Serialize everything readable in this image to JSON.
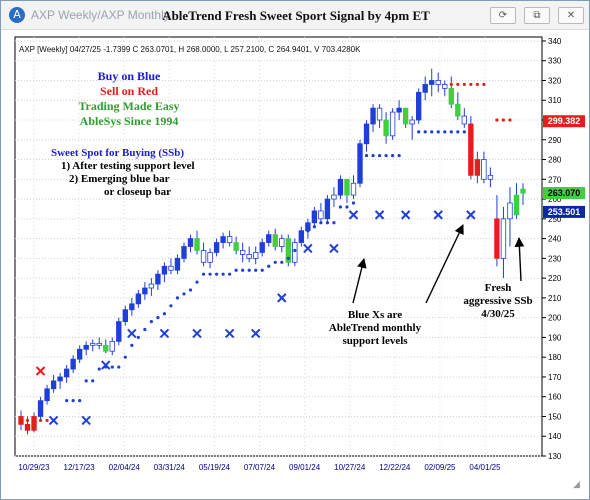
{
  "window": {
    "app_label": "AXP Weekly/AXP Monthly",
    "chart_title": "AbleTrend Fresh Sweet Sport Signal by 4pm ET",
    "buttons": {
      "refresh": "⟳",
      "restore": "⧉",
      "close": "✕"
    }
  },
  "header_text": "AXP [Weekly] 04/27/25 -1.7399 C 263.0701, H 268.0000, L 257.2100, C 264.9401, V 703.4280K",
  "legend_lines": [
    {
      "text": "Buy on Blue",
      "color": "#1a1ad6"
    },
    {
      "text": "Sell on Red",
      "color": "#e81c1c"
    },
    {
      "text": "Trading Made Easy",
      "color": "#2e9e2e"
    },
    {
      "text": "AbleSys Since 1994",
      "color": "#2e9e2e"
    }
  ],
  "sweet_spot": {
    "title": "Sweet Spot for Buying (SSb)",
    "lines": [
      "1) After testing support level",
      "2) Emerging blue bar",
      "or closeup bar"
    ]
  },
  "annotations": {
    "blue_x": [
      "Blue Xs are",
      "AbleTrend monthly",
      "support levels"
    ],
    "fresh": [
      "Fresh",
      "aggressive SSb",
      "4/30/25"
    ]
  },
  "price_labels": [
    {
      "value": 299.382,
      "text": "299.382",
      "bg": "#e81c1c",
      "fg": "#ffffff"
    },
    {
      "value": 263.07,
      "text": "263.070",
      "bg": "#3fcf3f",
      "fg": "#000000"
    },
    {
      "value": 253.501,
      "text": "253.501",
      "bg": "#0a2a9c",
      "fg": "#ffffff"
    }
  ],
  "chart_data": {
    "type": "candlestick",
    "y_ticks": [
      130,
      140,
      150,
      160,
      170,
      180,
      190,
      200,
      210,
      220,
      230,
      240,
      250,
      260,
      270,
      280,
      290,
      300,
      310,
      320,
      330,
      340
    ],
    "x_labels": [
      "10/29/23",
      "12/17/23",
      "02/04/24",
      "03/31/24",
      "05/19/24",
      "07/07/24",
      "09/01/24",
      "10/27/24",
      "12/22/24",
      "02/09/25",
      "04/01/25"
    ],
    "ylim": [
      130,
      342
    ],
    "x_count": 78,
    "bars": [
      {
        "o": 150,
        "h": 153,
        "l": 143,
        "c": 146,
        "color": "red"
      },
      {
        "o": 146,
        "h": 150,
        "l": 141,
        "c": 143,
        "color": "red"
      },
      {
        "o": 143,
        "h": 152,
        "l": 142,
        "c": 150,
        "color": "red"
      },
      {
        "o": 150,
        "h": 160,
        "l": 148,
        "c": 158,
        "color": "blue"
      },
      {
        "o": 158,
        "h": 166,
        "l": 156,
        "c": 164,
        "color": "blue"
      },
      {
        "o": 164,
        "h": 171,
        "l": 162,
        "c": 168,
        "color": "blue"
      },
      {
        "o": 168,
        "h": 172,
        "l": 164,
        "c": 170,
        "color": "blue"
      },
      {
        "o": 170,
        "h": 176,
        "l": 167,
        "c": 174,
        "color": "blue"
      },
      {
        "o": 174,
        "h": 181,
        "l": 172,
        "c": 179,
        "color": "blue"
      },
      {
        "o": 179,
        "h": 186,
        "l": 177,
        "c": 184,
        "color": "blue"
      },
      {
        "o": 184,
        "h": 188,
        "l": 181,
        "c": 186,
        "color": "blue"
      },
      {
        "o": 186,
        "h": 189,
        "l": 183,
        "c": 187,
        "color": "white"
      },
      {
        "o": 187,
        "h": 190,
        "l": 184,
        "c": 186,
        "color": "white"
      },
      {
        "o": 186,
        "h": 189,
        "l": 182,
        "c": 183,
        "color": "green"
      },
      {
        "o": 183,
        "h": 190,
        "l": 181,
        "c": 188,
        "color": "white"
      },
      {
        "o": 188,
        "h": 200,
        "l": 186,
        "c": 198,
        "color": "blue"
      },
      {
        "o": 198,
        "h": 206,
        "l": 196,
        "c": 204,
        "color": "blue"
      },
      {
        "o": 204,
        "h": 210,
        "l": 201,
        "c": 207,
        "color": "blue"
      },
      {
        "o": 207,
        "h": 214,
        "l": 205,
        "c": 212,
        "color": "blue"
      },
      {
        "o": 212,
        "h": 218,
        "l": 209,
        "c": 215,
        "color": "blue"
      },
      {
        "o": 215,
        "h": 220,
        "l": 211,
        "c": 217,
        "color": "white"
      },
      {
        "o": 217,
        "h": 224,
        "l": 214,
        "c": 222,
        "color": "blue"
      },
      {
        "o": 222,
        "h": 228,
        "l": 218,
        "c": 226,
        "color": "blue"
      },
      {
        "o": 226,
        "h": 230,
        "l": 222,
        "c": 224,
        "color": "white"
      },
      {
        "o": 224,
        "h": 232,
        "l": 222,
        "c": 230,
        "color": "blue"
      },
      {
        "o": 230,
        "h": 238,
        "l": 228,
        "c": 236,
        "color": "blue"
      },
      {
        "o": 236,
        "h": 242,
        "l": 233,
        "c": 240,
        "color": "blue"
      },
      {
        "o": 240,
        "h": 244,
        "l": 232,
        "c": 234,
        "color": "green"
      },
      {
        "o": 234,
        "h": 238,
        "l": 226,
        "c": 228,
        "color": "white"
      },
      {
        "o": 228,
        "h": 235,
        "l": 225,
        "c": 233,
        "color": "white"
      },
      {
        "o": 233,
        "h": 240,
        "l": 231,
        "c": 238,
        "color": "blue"
      },
      {
        "o": 238,
        "h": 243,
        "l": 235,
        "c": 241,
        "color": "blue"
      },
      {
        "o": 241,
        "h": 244,
        "l": 236,
        "c": 238,
        "color": "white"
      },
      {
        "o": 238,
        "h": 241,
        "l": 232,
        "c": 234,
        "color": "green"
      },
      {
        "o": 234,
        "h": 238,
        "l": 228,
        "c": 232,
        "color": "white"
      },
      {
        "o": 232,
        "h": 236,
        "l": 228,
        "c": 230,
        "color": "white"
      },
      {
        "o": 230,
        "h": 236,
        "l": 227,
        "c": 233,
        "color": "white"
      },
      {
        "o": 233,
        "h": 240,
        "l": 231,
        "c": 238,
        "color": "blue"
      },
      {
        "o": 238,
        "h": 244,
        "l": 236,
        "c": 242,
        "color": "blue"
      },
      {
        "o": 242,
        "h": 245,
        "l": 234,
        "c": 236,
        "color": "green"
      },
      {
        "o": 236,
        "h": 242,
        "l": 233,
        "c": 240,
        "color": "white"
      },
      {
        "o": 240,
        "h": 242,
        "l": 226,
        "c": 228,
        "color": "green"
      },
      {
        "o": 228,
        "h": 240,
        "l": 226,
        "c": 238,
        "color": "white"
      },
      {
        "o": 238,
        "h": 246,
        "l": 236,
        "c": 244,
        "color": "blue"
      },
      {
        "o": 244,
        "h": 250,
        "l": 240,
        "c": 248,
        "color": "blue"
      },
      {
        "o": 248,
        "h": 256,
        "l": 246,
        "c": 254,
        "color": "blue"
      },
      {
        "o": 254,
        "h": 258,
        "l": 248,
        "c": 250,
        "color": "white"
      },
      {
        "o": 250,
        "h": 262,
        "l": 248,
        "c": 260,
        "color": "blue"
      },
      {
        "o": 260,
        "h": 266,
        "l": 256,
        "c": 262,
        "color": "white"
      },
      {
        "o": 262,
        "h": 272,
        "l": 260,
        "c": 270,
        "color": "blue"
      },
      {
        "o": 270,
        "h": 268,
        "l": 258,
        "c": 262,
        "color": "green"
      },
      {
        "o": 262,
        "h": 272,
        "l": 260,
        "c": 268,
        "color": "white"
      },
      {
        "o": 268,
        "h": 290,
        "l": 266,
        "c": 288,
        "color": "blue"
      },
      {
        "o": 288,
        "h": 300,
        "l": 284,
        "c": 298,
        "color": "blue"
      },
      {
        "o": 298,
        "h": 308,
        "l": 294,
        "c": 306,
        "color": "blue"
      },
      {
        "o": 306,
        "h": 308,
        "l": 296,
        "c": 300,
        "color": "white"
      },
      {
        "o": 300,
        "h": 304,
        "l": 288,
        "c": 292,
        "color": "green"
      },
      {
        "o": 292,
        "h": 306,
        "l": 290,
        "c": 304,
        "color": "white"
      },
      {
        "o": 304,
        "h": 310,
        "l": 300,
        "c": 306,
        "color": "blue"
      },
      {
        "o": 306,
        "h": 306,
        "l": 296,
        "c": 298,
        "color": "green"
      },
      {
        "o": 298,
        "h": 302,
        "l": 290,
        "c": 300,
        "color": "white"
      },
      {
        "o": 300,
        "h": 316,
        "l": 298,
        "c": 314,
        "color": "blue"
      },
      {
        "o": 314,
        "h": 322,
        "l": 310,
        "c": 318,
        "color": "blue"
      },
      {
        "o": 318,
        "h": 326,
        "l": 312,
        "c": 320,
        "color": "blue"
      },
      {
        "o": 320,
        "h": 324,
        "l": 314,
        "c": 318,
        "color": "white"
      },
      {
        "o": 318,
        "h": 320,
        "l": 312,
        "c": 316,
        "color": "white"
      },
      {
        "o": 316,
        "h": 322,
        "l": 306,
        "c": 308,
        "color": "green"
      },
      {
        "o": 308,
        "h": 314,
        "l": 300,
        "c": 302,
        "color": "green"
      },
      {
        "o": 302,
        "h": 306,
        "l": 296,
        "c": 298,
        "color": "white"
      },
      {
        "o": 298,
        "h": 302,
        "l": 270,
        "c": 272,
        "color": "red"
      },
      {
        "o": 272,
        "h": 284,
        "l": 268,
        "c": 280,
        "color": "red"
      },
      {
        "o": 280,
        "h": 284,
        "l": 268,
        "c": 270,
        "color": "white"
      },
      {
        "o": 270,
        "h": 276,
        "l": 266,
        "c": 272,
        "color": "white"
      },
      {
        "o": 250,
        "h": 262,
        "l": 226,
        "c": 230,
        "color": "red"
      },
      {
        "o": 230,
        "h": 256,
        "l": 220,
        "c": 250,
        "color": "white"
      },
      {
        "o": 250,
        "h": 266,
        "l": 236,
        "c": 258,
        "color": "white"
      },
      {
        "o": 252,
        "h": 268,
        "l": 250,
        "c": 262,
        "color": "green"
      },
      {
        "o": 263,
        "h": 268,
        "l": 257,
        "c": 265,
        "color": "green"
      }
    ],
    "support_dots": [
      {
        "i": 0,
        "y": 148,
        "color": "red"
      },
      {
        "i": 1,
        "y": 148,
        "color": "red"
      },
      {
        "i": 2,
        "y": 148,
        "color": "red"
      },
      {
        "i": 3,
        "y": 148,
        "color": "red"
      },
      {
        "i": 4,
        "y": 148,
        "color": "red"
      },
      {
        "i": 5,
        "y": 148,
        "color": "red"
      },
      {
        "i": 7,
        "y": 158,
        "color": "blue"
      },
      {
        "i": 8,
        "y": 158,
        "color": "blue"
      },
      {
        "i": 9,
        "y": 158,
        "color": "blue"
      },
      {
        "i": 10,
        "y": 168,
        "color": "blue"
      },
      {
        "i": 11,
        "y": 168,
        "color": "blue"
      },
      {
        "i": 12,
        "y": 174,
        "color": "blue"
      },
      {
        "i": 13,
        "y": 175,
        "color": "blue"
      },
      {
        "i": 14,
        "y": 175,
        "color": "blue"
      },
      {
        "i": 15,
        "y": 175,
        "color": "blue"
      },
      {
        "i": 16,
        "y": 180,
        "color": "blue"
      },
      {
        "i": 17,
        "y": 186,
        "color": "blue"
      },
      {
        "i": 18,
        "y": 190,
        "color": "blue"
      },
      {
        "i": 19,
        "y": 194,
        "color": "blue"
      },
      {
        "i": 20,
        "y": 198,
        "color": "blue"
      },
      {
        "i": 21,
        "y": 200,
        "color": "blue"
      },
      {
        "i": 22,
        "y": 202,
        "color": "blue"
      },
      {
        "i": 23,
        "y": 206,
        "color": "blue"
      },
      {
        "i": 24,
        "y": 210,
        "color": "blue"
      },
      {
        "i": 25,
        "y": 212,
        "color": "blue"
      },
      {
        "i": 26,
        "y": 214,
        "color": "blue"
      },
      {
        "i": 27,
        "y": 218,
        "color": "blue"
      },
      {
        "i": 28,
        "y": 222,
        "color": "blue"
      },
      {
        "i": 29,
        "y": 222,
        "color": "blue"
      },
      {
        "i": 30,
        "y": 222,
        "color": "blue"
      },
      {
        "i": 31,
        "y": 222,
        "color": "blue"
      },
      {
        "i": 32,
        "y": 222,
        "color": "blue"
      },
      {
        "i": 33,
        "y": 224,
        "color": "blue"
      },
      {
        "i": 34,
        "y": 224,
        "color": "blue"
      },
      {
        "i": 35,
        "y": 224,
        "color": "blue"
      },
      {
        "i": 36,
        "y": 224,
        "color": "blue"
      },
      {
        "i": 37,
        "y": 224,
        "color": "blue"
      },
      {
        "i": 38,
        "y": 226,
        "color": "blue"
      },
      {
        "i": 39,
        "y": 228,
        "color": "blue"
      },
      {
        "i": 40,
        "y": 228,
        "color": "blue"
      },
      {
        "i": 41,
        "y": 230,
        "color": "blue"
      },
      {
        "i": 42,
        "y": 234,
        "color": "blue"
      },
      {
        "i": 43,
        "y": 240,
        "color": "blue"
      },
      {
        "i": 44,
        "y": 244,
        "color": "blue"
      },
      {
        "i": 45,
        "y": 246,
        "color": "blue"
      },
      {
        "i": 46,
        "y": 248,
        "color": "blue"
      },
      {
        "i": 47,
        "y": 248,
        "color": "blue"
      },
      {
        "i": 48,
        "y": 248,
        "color": "blue"
      },
      {
        "i": 49,
        "y": 256,
        "color": "blue"
      },
      {
        "i": 50,
        "y": 256,
        "color": "blue"
      },
      {
        "i": 51,
        "y": 258,
        "color": "blue"
      },
      {
        "i": 52,
        "y": 282,
        "color": "blue"
      },
      {
        "i": 53,
        "y": 282,
        "color": "blue"
      },
      {
        "i": 54,
        "y": 282,
        "color": "blue"
      },
      {
        "i": 55,
        "y": 282,
        "color": "blue"
      },
      {
        "i": 56,
        "y": 282,
        "color": "blue"
      },
      {
        "i": 57,
        "y": 282,
        "color": "blue"
      },
      {
        "i": 58,
        "y": 282,
        "color": "blue"
      },
      {
        "i": 61,
        "y": 294,
        "color": "blue"
      },
      {
        "i": 62,
        "y": 294,
        "color": "blue"
      },
      {
        "i": 63,
        "y": 294,
        "color": "blue"
      },
      {
        "i": 64,
        "y": 294,
        "color": "blue"
      },
      {
        "i": 65,
        "y": 294,
        "color": "blue"
      },
      {
        "i": 66,
        "y": 294,
        "color": "blue"
      },
      {
        "i": 67,
        "y": 294,
        "color": "blue"
      },
      {
        "i": 68,
        "y": 294,
        "color": "blue"
      },
      {
        "i": 66,
        "y": 318,
        "color": "red"
      },
      {
        "i": 67,
        "y": 318,
        "color": "red"
      },
      {
        "i": 68,
        "y": 318,
        "color": "red"
      },
      {
        "i": 69,
        "y": 318,
        "color": "red"
      },
      {
        "i": 70,
        "y": 318,
        "color": "red"
      },
      {
        "i": 71,
        "y": 318,
        "color": "red"
      },
      {
        "i": 73,
        "y": 300,
        "color": "red"
      },
      {
        "i": 74,
        "y": 300,
        "color": "red"
      },
      {
        "i": 75,
        "y": 300,
        "color": "red"
      }
    ],
    "monthly_x": [
      {
        "i": 3,
        "y": 173,
        "color": "red"
      },
      {
        "i": 5,
        "y": 148,
        "color": "blue"
      },
      {
        "i": 10,
        "y": 148,
        "color": "blue"
      },
      {
        "i": 13,
        "y": 176,
        "color": "blue"
      },
      {
        "i": 17,
        "y": 192,
        "color": "blue"
      },
      {
        "i": 22,
        "y": 192,
        "color": "blue"
      },
      {
        "i": 27,
        "y": 192,
        "color": "blue"
      },
      {
        "i": 32,
        "y": 192,
        "color": "blue"
      },
      {
        "i": 36,
        "y": 192,
        "color": "blue"
      },
      {
        "i": 40,
        "y": 210,
        "color": "blue"
      },
      {
        "i": 44,
        "y": 235,
        "color": "blue"
      },
      {
        "i": 48,
        "y": 235,
        "color": "blue"
      },
      {
        "i": 51,
        "y": 252,
        "color": "blue"
      },
      {
        "i": 55,
        "y": 252,
        "color": "blue"
      },
      {
        "i": 59,
        "y": 252,
        "color": "blue"
      },
      {
        "i": 64,
        "y": 252,
        "color": "blue"
      },
      {
        "i": 69,
        "y": 252,
        "color": "blue"
      }
    ]
  }
}
